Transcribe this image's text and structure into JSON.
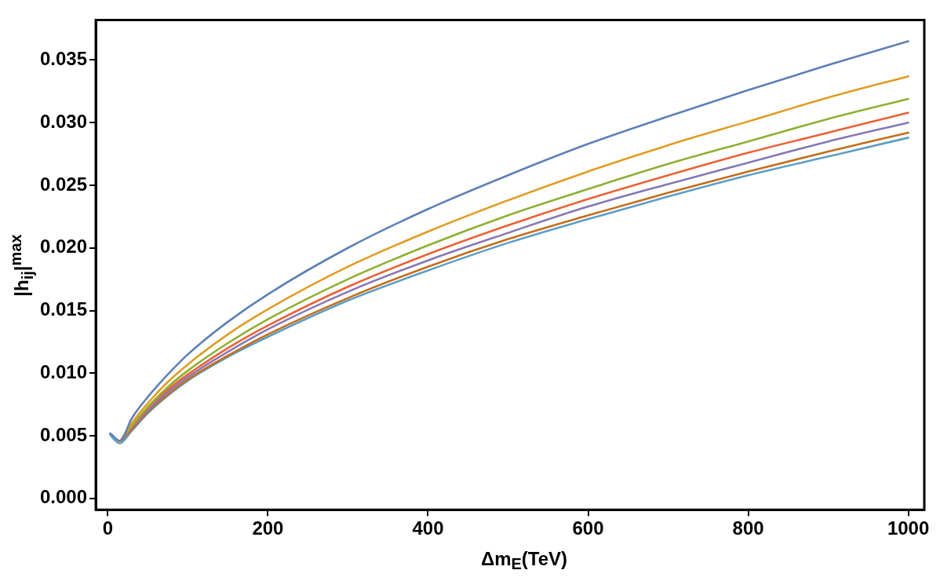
{
  "chart_data": {
    "type": "line",
    "xlabel": "Δm$_{E}$(TeV)",
    "ylabel": "|h$_{ij}$|$^{max}$",
    "x": [
      3,
      8,
      15,
      30,
      50,
      75,
      100,
      150,
      200,
      300,
      400,
      500,
      600,
      700,
      800,
      900,
      1000
    ],
    "xlim": [
      -15,
      1020
    ],
    "xticks": [
      0,
      200,
      400,
      600,
      800,
      1000
    ],
    "ylim": [
      -0.0009,
      0.0382
    ],
    "yticks": [
      {
        "value": 0,
        "label": "0.000"
      },
      {
        "value": 0.005,
        "label": "0.005"
      },
      {
        "value": 0.01,
        "label": "0.010"
      },
      {
        "value": 0.015,
        "label": "0.015"
      },
      {
        "value": 0.02,
        "label": "0.020"
      },
      {
        "value": 0.025,
        "label": "0.025"
      },
      {
        "value": 0.03,
        "label": "0.030"
      },
      {
        "value": 0.035,
        "label": "0.035"
      }
    ],
    "marker": "none",
    "line_style": "solid",
    "legend": false,
    "series": [
      {
        "color": "#5e81b5",
        "values": [
          0.0052,
          0.0049,
          0.0046,
          0.0064,
          0.0081,
          0.0099,
          0.0115,
          0.0141,
          0.0163,
          0.02,
          0.0231,
          0.0258,
          0.0283,
          0.0305,
          0.0326,
          0.0346,
          0.0365
        ]
      },
      {
        "color": "#e19c24",
        "values": [
          null,
          null,
          0.0045,
          0.006,
          0.0076,
          0.0093,
          0.0107,
          0.0131,
          0.0151,
          0.0185,
          0.0213,
          0.0238,
          0.0261,
          0.0282,
          0.0301,
          0.032,
          0.0337
        ]
      },
      {
        "color": "#8fb032",
        "values": [
          null,
          null,
          0.0045,
          0.0058,
          0.0073,
          0.0089,
          0.0102,
          0.0124,
          0.0143,
          0.0175,
          0.0202,
          0.0226,
          0.0247,
          0.0267,
          0.0285,
          0.0303,
          0.0319
        ]
      },
      {
        "color": "#eb6235",
        "values": [
          null,
          null,
          0.0045,
          0.0057,
          0.0072,
          0.0087,
          0.0099,
          0.012,
          0.0138,
          0.0169,
          0.0195,
          0.0218,
          0.0239,
          0.0258,
          0.0276,
          0.0292,
          0.0308
        ]
      },
      {
        "color": "#8778b3",
        "values": [
          null,
          null,
          0.0045,
          0.0056,
          0.007,
          0.0085,
          0.0097,
          0.0117,
          0.0135,
          0.0165,
          0.019,
          0.0212,
          0.0233,
          0.0251,
          0.0268,
          0.0285,
          0.03
        ]
      },
      {
        "color": "#c56e1a",
        "values": [
          null,
          null,
          0.0045,
          0.0055,
          0.0069,
          0.0083,
          0.0095,
          0.0114,
          0.0131,
          0.016,
          0.0185,
          0.0207,
          0.0226,
          0.0244,
          0.0261,
          0.0277,
          0.0292
        ]
      },
      {
        "color": "#5d9ec7",
        "values": [
          0.0051,
          0.0047,
          0.0044,
          0.0054,
          0.0068,
          0.0082,
          0.0094,
          0.0113,
          0.0129,
          0.0158,
          0.0182,
          0.0204,
          0.0223,
          0.0241,
          0.0258,
          0.0273,
          0.0288
        ]
      }
    ]
  }
}
